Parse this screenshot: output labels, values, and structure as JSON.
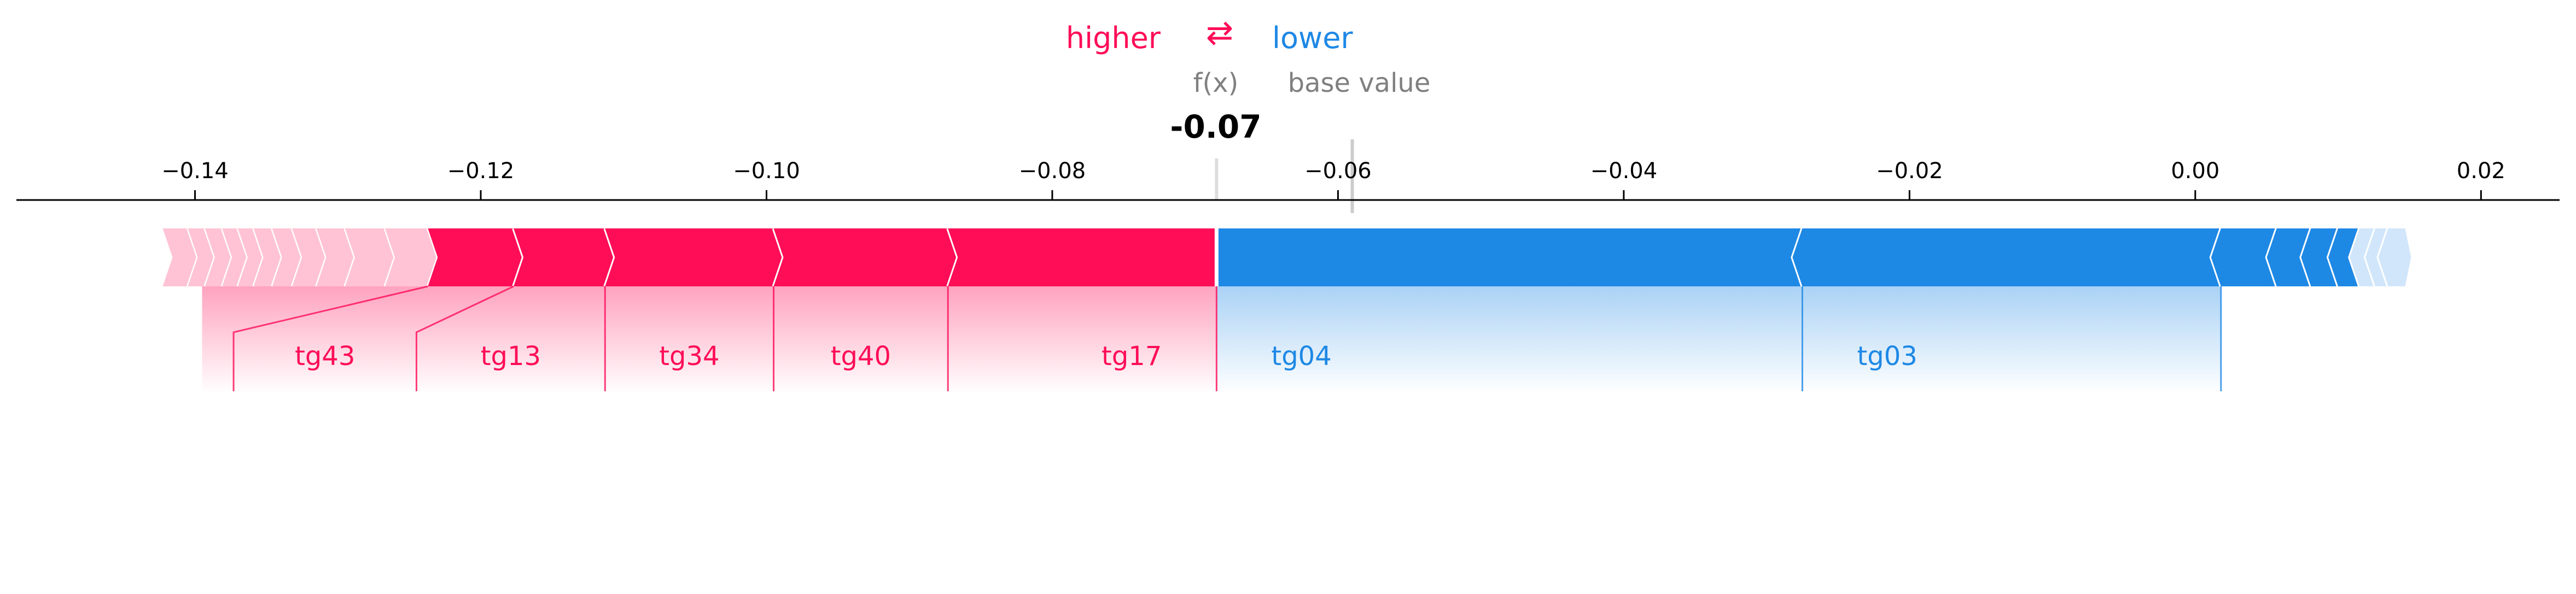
{
  "legend": {
    "higher": "higher",
    "arrow": "⇄",
    "lower": "lower"
  },
  "annotations": {
    "fx_label": "f(x)",
    "base_label": "base value",
    "fx_value_text": "-0.07"
  },
  "colors": {
    "positive": "#ff0d57",
    "negative": "#1e88e5",
    "positive_light": "#ffc3d5",
    "negative_light": "#d1e6fa",
    "separator": "#ffffff",
    "axis": "#000000",
    "muted_text": "#808080"
  },
  "chart_data": {
    "type": "force",
    "xlim": [
      -0.1525,
      0.0255
    ],
    "ticks": [
      -0.14,
      -0.12,
      -0.1,
      -0.08,
      -0.06,
      -0.04,
      -0.02,
      0.0,
      0.02
    ],
    "tick_labels": [
      "−0.14",
      "−0.12",
      "−0.10",
      "−0.08",
      "−0.06",
      "−0.04",
      "−0.02",
      "0.00",
      "0.02"
    ],
    "output_value": -0.0685,
    "base_value": -0.059,
    "pos_bounds": [
      -0.1418,
      -0.1405,
      -0.1393,
      -0.1381,
      -0.137,
      -0.1359,
      -0.1346,
      -0.1332,
      -0.1315,
      -0.1295,
      -0.1267,
      -0.1237,
      -0.1177,
      -0.1113,
      -0.0995,
      -0.0873,
      -0.0685
    ],
    "neg_bounds": [
      -0.0685,
      -0.0275,
      0.0018,
      0.0057,
      0.0081,
      0.01,
      0.0115,
      0.0126,
      0.0135,
      0.014
    ],
    "pos_labels": [
      {
        "name": "tg17",
        "left": -0.0873,
        "right": -0.0685
      },
      {
        "name": "tg40",
        "left": -0.0995,
        "right": -0.0873
      },
      {
        "name": "tg34",
        "left": -0.1113,
        "right": -0.0995
      },
      {
        "name": "tg13",
        "left": -0.1177,
        "right": -0.1113
      },
      {
        "name": "tg43",
        "left": -0.1237,
        "right": -0.1177
      }
    ],
    "neg_labels": [
      {
        "name": "tg04",
        "left": -0.0685,
        "right": -0.0275
      },
      {
        "name": "tg03",
        "left": -0.0275,
        "right": 0.0018
      }
    ]
  }
}
